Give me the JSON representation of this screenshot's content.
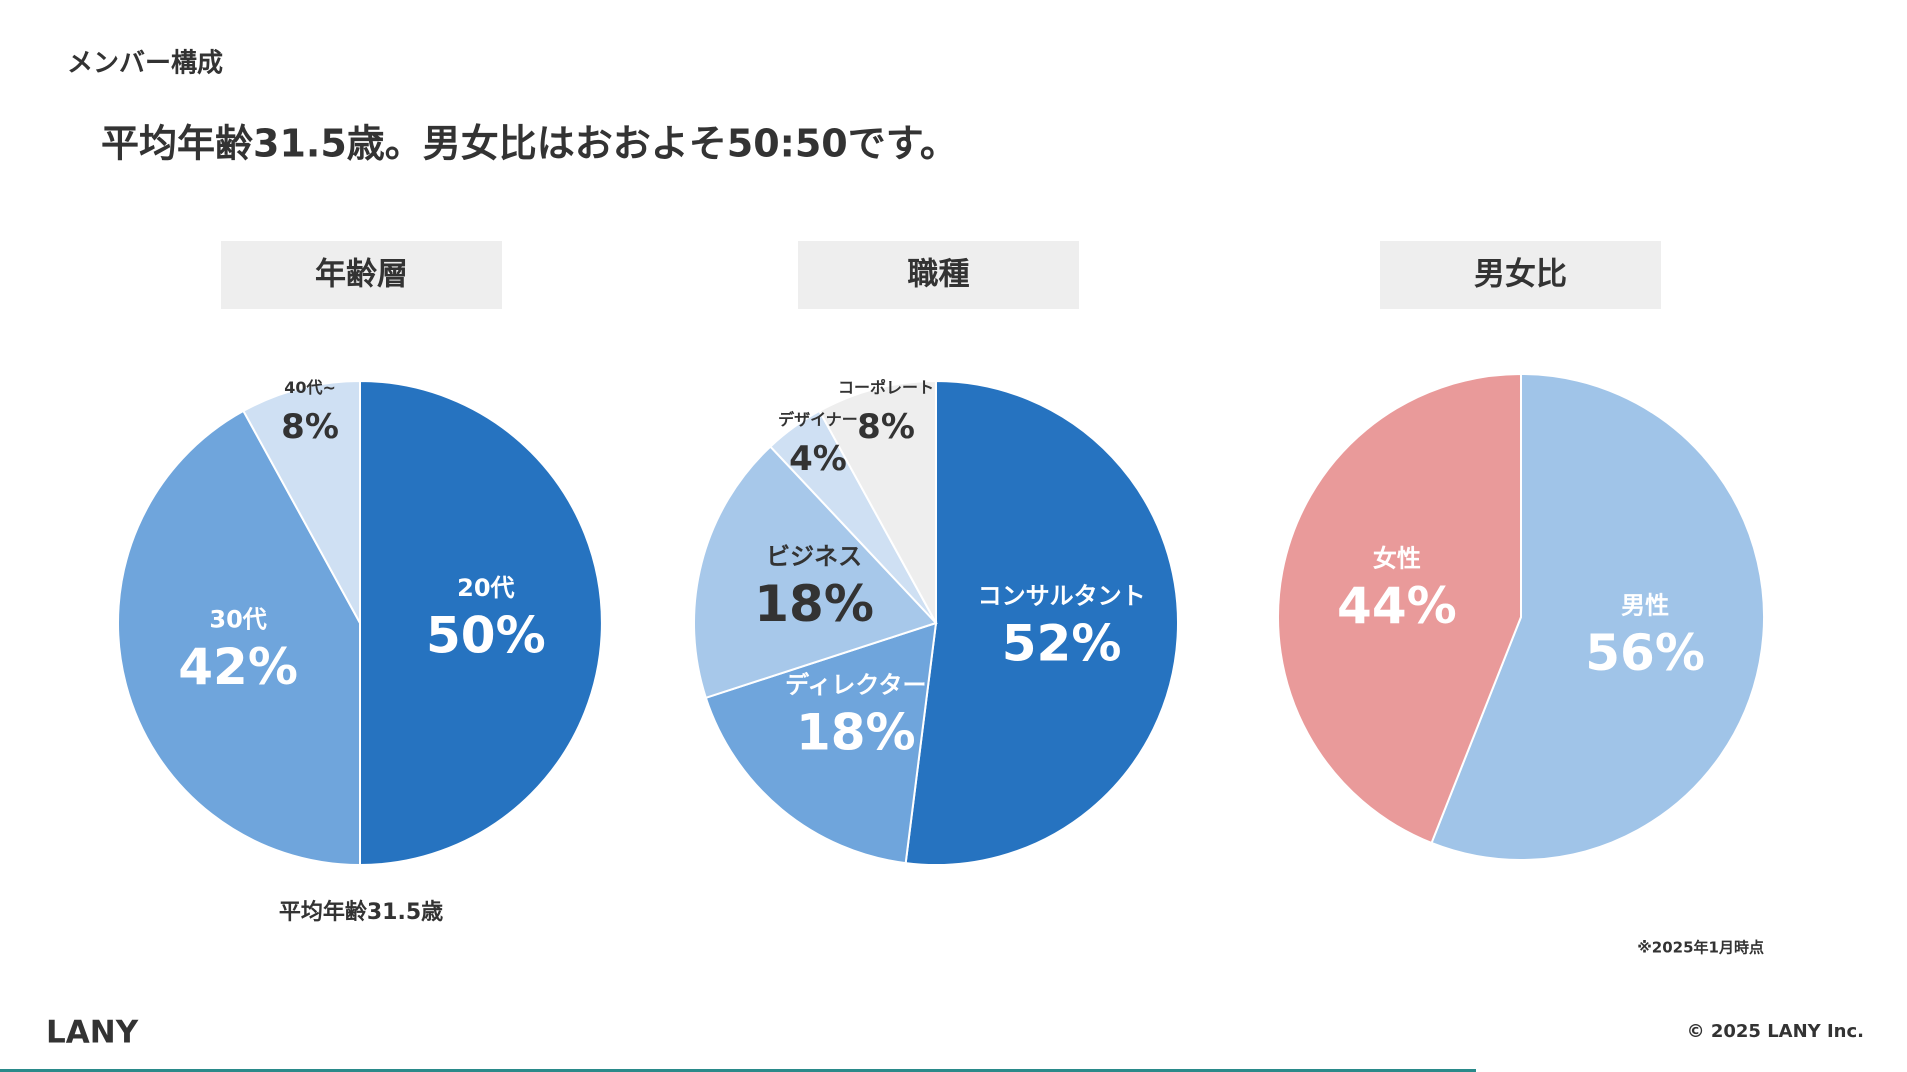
{
  "page": {
    "section": "メンバー構成",
    "headline": "平均年齢31.5歳。男女比はおおよそ50:50です。",
    "age_note": "平均年齢31.5歳",
    "date_note": "※2025年1月時点",
    "logo": "LANY",
    "copyright": "© 2025 LANY Inc."
  },
  "chart_data": [
    {
      "type": "pie",
      "title": "年齢層",
      "categories": [
        "20代",
        "30代",
        "40代~"
      ],
      "values": [
        50,
        42,
        8
      ],
      "value_labels": [
        "50%",
        "42%",
        "8%"
      ],
      "colors": [
        "#2673c0",
        "#6fa5dc",
        "#cfe0f3"
      ],
      "label_colors": [
        "#ffffff",
        "#ffffff",
        "#333333"
      ]
    },
    {
      "type": "pie",
      "title": "職種",
      "categories": [
        "コンサルタント",
        "ディレクター",
        "ビジネス",
        "デザイナー",
        "コーポレート"
      ],
      "values": [
        52,
        18,
        18,
        4,
        8
      ],
      "value_labels": [
        "52%",
        "18%",
        "18%",
        "4%",
        "8%"
      ],
      "colors": [
        "#2673c0",
        "#6fa5dc",
        "#a7c8ea",
        "#cfe0f3",
        "#eeeeee"
      ],
      "label_colors": [
        "#ffffff",
        "#ffffff",
        "#333333",
        "#333333",
        "#333333"
      ]
    },
    {
      "type": "pie",
      "title": "男女比",
      "categories": [
        "男性",
        "女性"
      ],
      "values": [
        56,
        44
      ],
      "value_labels": [
        "56%",
        "44%"
      ],
      "colors": [
        "#a0c4e8",
        "#e99a9a"
      ],
      "label_colors": [
        "#ffffff",
        "#ffffff"
      ]
    }
  ]
}
